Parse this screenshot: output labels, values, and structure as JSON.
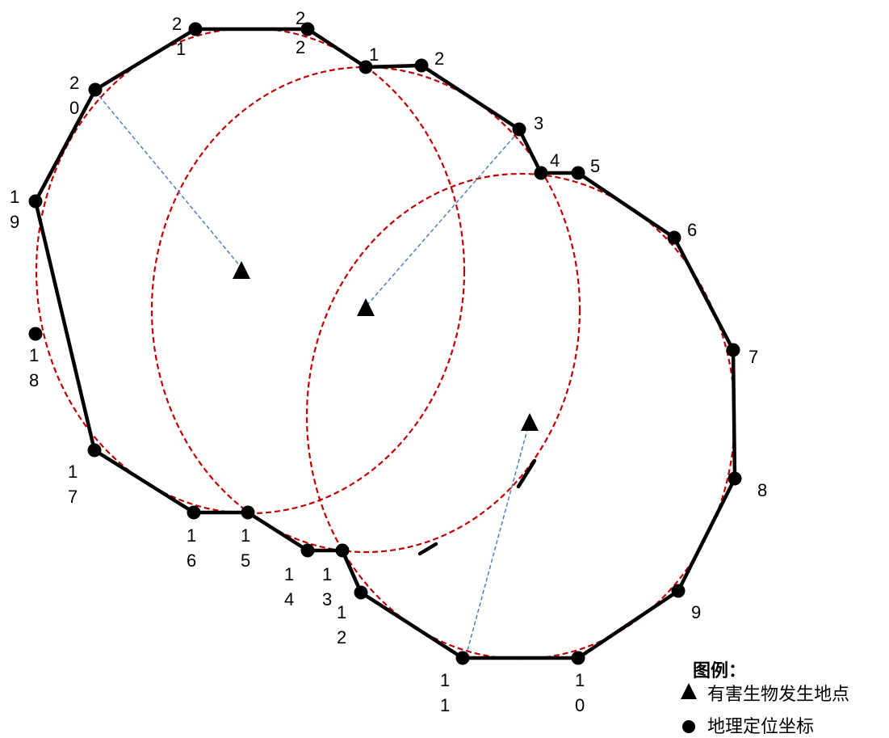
{
  "legend": {
    "title": "图例：",
    "items": [
      {
        "symbol": "triangle",
        "label": "有害生物发生地点"
      },
      {
        "symbol": "dot",
        "label": "地理定位坐标"
      }
    ]
  },
  "points": [
    {
      "label": "1"
    },
    {
      "label": "2"
    },
    {
      "label": "3"
    },
    {
      "label": "4"
    },
    {
      "label": "5"
    },
    {
      "label": "6"
    },
    {
      "label": "7"
    },
    {
      "label": "8"
    },
    {
      "label": "9"
    },
    {
      "label": "1\n0"
    },
    {
      "label": "1\n1"
    },
    {
      "label": "1\n2"
    },
    {
      "label": "1\n3"
    },
    {
      "label": "1\n4"
    },
    {
      "label": "1\n5"
    },
    {
      "label": "1\n6"
    },
    {
      "label": "1\n7"
    },
    {
      "label": "1\n8"
    },
    {
      "label": "1\n9"
    },
    {
      "label": "2\n0"
    },
    {
      "label": "2\n1"
    },
    {
      "label": "2\n2"
    }
  ],
  "colors": {
    "polygon": "#000000",
    "circle": "#c00000",
    "connector": "#4f7fbf"
  }
}
